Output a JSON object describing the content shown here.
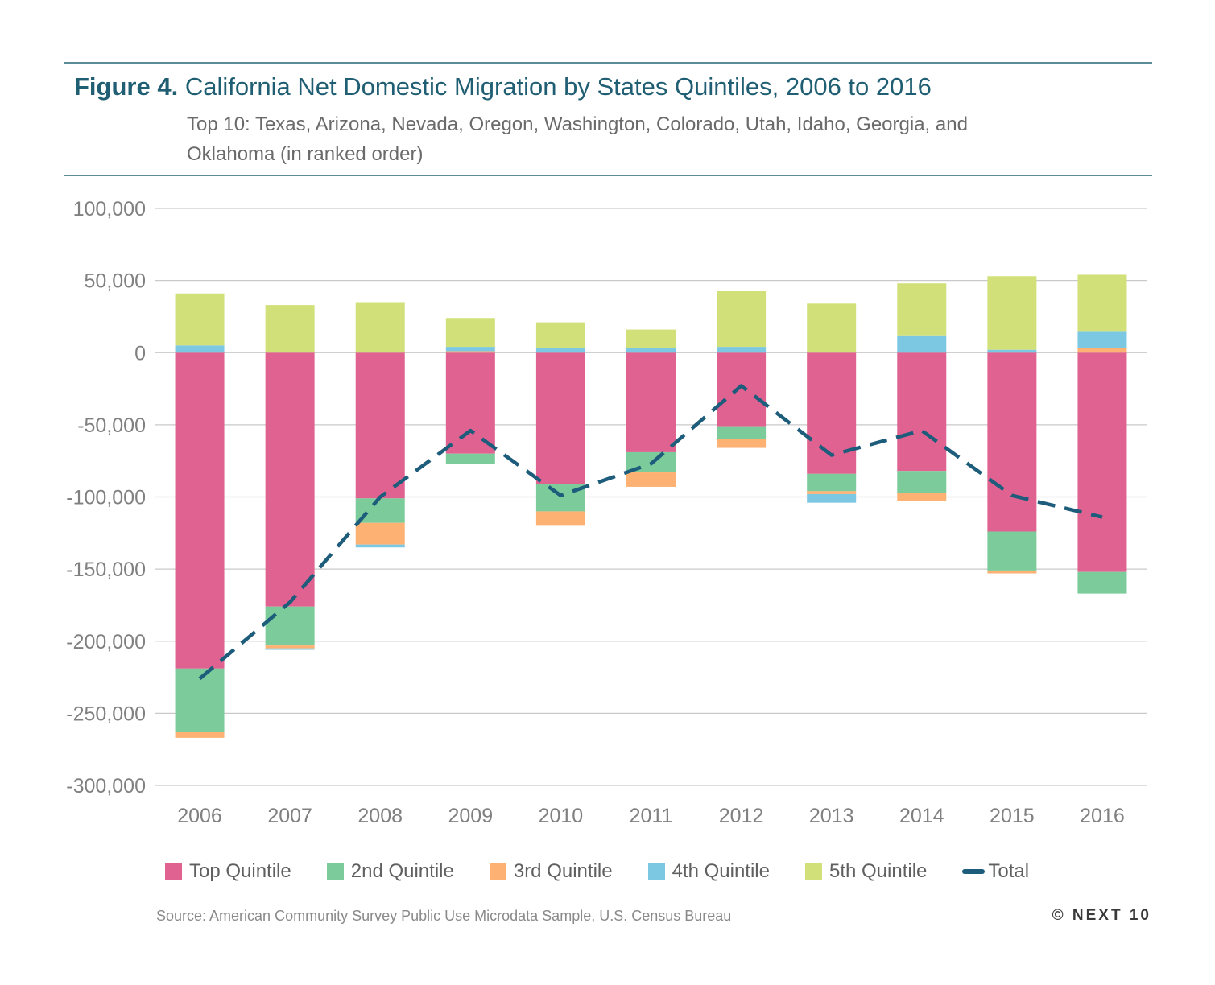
{
  "header": {
    "figure_label": "Figure 4.",
    "title": "California Net Domestic Migration by States Quintiles, 2006 to 2016",
    "subtitle": "Top 10: Texas, Arizona, Nevada, Oregon, Washington, Colorado, Utah, Idaho, Georgia, and Oklahoma (in ranked order)"
  },
  "footer": {
    "source": "Source: American Community Survey Public Use Microdata Sample, U.S. Census Bureau",
    "brand": "© NEXT 10"
  },
  "chart_data": {
    "type": "bar",
    "stacked": true,
    "categories": [
      "2006",
      "2007",
      "2008",
      "2009",
      "2010",
      "2011",
      "2012",
      "2013",
      "2014",
      "2015",
      "2016"
    ],
    "ylim": [
      -300000,
      100000
    ],
    "yticks": [
      100000,
      50000,
      0,
      -50000,
      -100000,
      -150000,
      -200000,
      -250000,
      -300000
    ],
    "ytick_labels": [
      "100,000",
      "50,000",
      "0",
      "-50,000",
      "-100,000",
      "-150,000",
      "-200,000",
      "-250,000",
      "-300,000"
    ],
    "grid": true,
    "legend_position": "bottom",
    "series": [
      {
        "name": "Top Quintile",
        "color": "#e06291",
        "values": [
          -219000,
          -176000,
          -101000,
          -70000,
          -91000,
          -69000,
          -51000,
          -84000,
          -82000,
          -124000,
          -152000
        ]
      },
      {
        "name": "2nd Quintile",
        "color": "#7ccb9b",
        "values": [
          -44000,
          -27000,
          -17000,
          -7000,
          -19000,
          -14000,
          -9000,
          -12000,
          -15000,
          -27000,
          -15000
        ]
      },
      {
        "name": "3rd Quintile",
        "color": "#fdb274",
        "values": [
          -4000,
          -2000,
          -15000,
          1000,
          -10000,
          -10000,
          -6000,
          -2000,
          -6000,
          -2000,
          3000
        ]
      },
      {
        "name": "4th Quintile",
        "color": "#7cc7e2",
        "values": [
          5000,
          -1000,
          -2000,
          3000,
          3000,
          3000,
          4000,
          -6000,
          12000,
          2000,
          12000
        ]
      },
      {
        "name": "5th Quintile",
        "color": "#d2e07a",
        "values": [
          36000,
          33000,
          35000,
          20000,
          18000,
          13000,
          39000,
          34000,
          36000,
          51000,
          39000
        ]
      }
    ],
    "total": {
      "name": "Total",
      "color": "#1d5c7b",
      "values": [
        -226000,
        -173000,
        -100000,
        -54000,
        -99000,
        -77000,
        -23000,
        -71000,
        -54000,
        -99000,
        -114000
      ]
    }
  }
}
